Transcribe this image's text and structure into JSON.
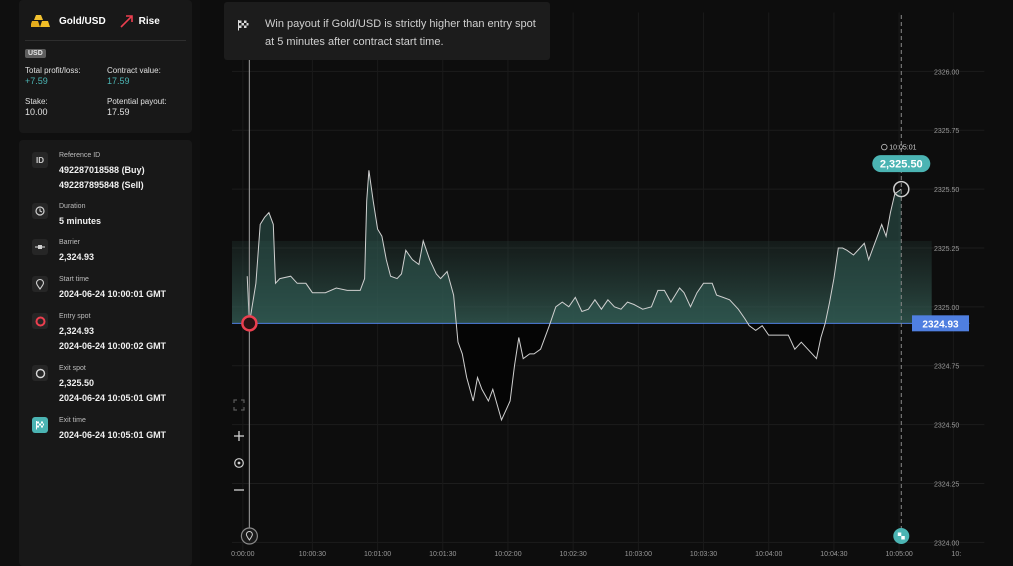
{
  "summary": {
    "asset": "Gold/USD",
    "trade_type": "Rise",
    "currency": "USD",
    "total_pl_label": "Total profit/loss:",
    "total_pl_value": "+7.59",
    "contract_value_label": "Contract value:",
    "contract_value_value": "17.59",
    "stake_label": "Stake:",
    "stake_value": "10.00",
    "potential_payout_label": "Potential payout:",
    "potential_payout_value": "17.59"
  },
  "details": {
    "reference": {
      "icon": "ID",
      "label": "Reference ID",
      "buy": "492287018588 (Buy)",
      "sell": "492287895848 (Sell)"
    },
    "duration": {
      "label": "Duration",
      "value": "5 minutes"
    },
    "barrier": {
      "label": "Barrier",
      "value": "2,324.93"
    },
    "start_time": {
      "label": "Start time",
      "value": "2024-06-24 10:00:01 GMT"
    },
    "entry_spot": {
      "label": "Entry spot",
      "value": "2,324.93",
      "time": "2024-06-24 10:00:02 GMT"
    },
    "exit_spot": {
      "label": "Exit spot",
      "value": "2,325.50",
      "time": "2024-06-24 10:05:01 GMT"
    },
    "exit_time": {
      "label": "Exit time",
      "value": "2024-06-24 10:05:01 GMT"
    }
  },
  "tooltip": {
    "text": "Win payout if Gold/USD is strictly higher than entry spot at 5 minutes after contract start time."
  },
  "colors": {
    "accent_teal": "#4bb4b3",
    "barrier_blue": "#4f7fe0",
    "entry_red": "#ec3f4f",
    "price_line": "#d0d0d0"
  },
  "chart_data": {
    "type": "line",
    "title": "",
    "xlabel": "",
    "ylabel": "",
    "ylim": [
      2323.95,
      2326.08
    ],
    "y_ticks": [
      "2326.00",
      "2325.75",
      "2325.50",
      "2325.25",
      "2325.00",
      "2324.75",
      "2324.50",
      "2324.25",
      "2324.00"
    ],
    "y_tick_values": [
      2326.0,
      2325.75,
      2325.5,
      2325.25,
      2325.0,
      2324.75,
      2324.5,
      2324.25,
      2324.0
    ],
    "x_ticks": [
      "0:00:00",
      "10:00:30",
      "10:01:00",
      "10:01:30",
      "10:02:00",
      "10:02:30",
      "10:03:00",
      "10:03:30",
      "10:04:00",
      "10:04:30",
      "10:05:00",
      "10:"
    ],
    "x_tick_seconds": [
      -2,
      30,
      60,
      90,
      120,
      150,
      180,
      210,
      240,
      270,
      300,
      325
    ],
    "x_range_seconds": [
      -7,
      330
    ],
    "barrier": 2324.93,
    "barrier_label": "2324.93",
    "entry": {
      "t": 1,
      "price": 2324.93
    },
    "exit": {
      "t": 301,
      "price": 2325.5,
      "label": "2,325.50",
      "time_label": "10:05:01"
    },
    "grid": true,
    "series": [
      {
        "values": [
          [
            0,
            2325.13
          ],
          [
            1,
            2324.93
          ],
          [
            4,
            2325.1
          ],
          [
            6,
            2325.35
          ],
          [
            8,
            2325.38
          ],
          [
            10,
            2325.4
          ],
          [
            12,
            2325.35
          ],
          [
            13,
            2325.1
          ],
          [
            15,
            2325.12
          ],
          [
            20,
            2325.13
          ],
          [
            23,
            2325.1
          ],
          [
            27,
            2325.1
          ],
          [
            30,
            2325.06
          ],
          [
            33,
            2325.06
          ],
          [
            36,
            2325.06
          ],
          [
            41,
            2325.08
          ],
          [
            46,
            2325.07
          ],
          [
            52,
            2325.07
          ],
          [
            54,
            2325.12
          ],
          [
            55,
            2325.45
          ],
          [
            56,
            2325.58
          ],
          [
            58,
            2325.45
          ],
          [
            60,
            2325.33
          ],
          [
            62,
            2325.3
          ],
          [
            64,
            2325.2
          ],
          [
            66,
            2325.13
          ],
          [
            69,
            2325.12
          ],
          [
            71,
            2325.14
          ],
          [
            73,
            2325.24
          ],
          [
            76,
            2325.2
          ],
          [
            79,
            2325.18
          ],
          [
            81,
            2325.28
          ],
          [
            84,
            2325.2
          ],
          [
            87,
            2325.14
          ],
          [
            89,
            2325.12
          ],
          [
            92,
            2325.15
          ],
          [
            95,
            2325.05
          ],
          [
            97,
            2324.85
          ],
          [
            99,
            2324.8
          ],
          [
            101,
            2324.7
          ],
          [
            104,
            2324.6
          ],
          [
            106,
            2324.7
          ],
          [
            108,
            2324.65
          ],
          [
            111,
            2324.6
          ],
          [
            113,
            2324.65
          ],
          [
            117,
            2324.52
          ],
          [
            121,
            2324.6
          ],
          [
            123,
            2324.75
          ],
          [
            125,
            2324.87
          ],
          [
            127,
            2324.78
          ],
          [
            130,
            2324.8
          ],
          [
            132,
            2324.8
          ],
          [
            135,
            2324.82
          ],
          [
            139,
            2324.92
          ],
          [
            142,
            2325.0
          ],
          [
            145,
            2325.02
          ],
          [
            148,
            2325.0
          ],
          [
            151,
            2325.04
          ],
          [
            154,
            2324.98
          ],
          [
            157,
            2324.99
          ],
          [
            160,
            2325.03
          ],
          [
            163,
            2324.99
          ],
          [
            166,
            2325.03
          ],
          [
            169,
            2325.0
          ],
          [
            172,
            2324.99
          ],
          [
            175,
            2325.02
          ],
          [
            178,
            2325.01
          ],
          [
            182,
            2324.99
          ],
          [
            186,
            2325.0
          ],
          [
            189,
            2325.07
          ],
          [
            192,
            2325.07
          ],
          [
            195,
            2325.02
          ],
          [
            199,
            2325.08
          ],
          [
            201,
            2325.06
          ],
          [
            204,
            2325.0
          ],
          [
            207,
            2325.06
          ],
          [
            210,
            2325.1
          ],
          [
            214,
            2325.1
          ],
          [
            216,
            2325.05
          ],
          [
            219,
            2325.04
          ],
          [
            222,
            2325.03
          ],
          [
            226,
            2324.99
          ],
          [
            229,
            2324.95
          ],
          [
            231,
            2324.92
          ],
          [
            234,
            2324.9
          ],
          [
            237,
            2324.92
          ],
          [
            240,
            2324.88
          ],
          [
            243,
            2324.88
          ],
          [
            246,
            2324.88
          ],
          [
            249,
            2324.88
          ],
          [
            252,
            2324.82
          ],
          [
            255,
            2324.85
          ],
          [
            258,
            2324.82
          ],
          [
            262,
            2324.78
          ],
          [
            264,
            2324.87
          ],
          [
            266,
            2324.93
          ],
          [
            268,
            2325.02
          ],
          [
            270,
            2325.12
          ],
          [
            272,
            2325.25
          ],
          [
            274,
            2325.25
          ],
          [
            276,
            2325.24
          ],
          [
            279,
            2325.22
          ],
          [
            282,
            2325.25
          ],
          [
            284,
            2325.27
          ],
          [
            286,
            2325.2
          ],
          [
            288,
            2325.25
          ],
          [
            290,
            2325.3
          ],
          [
            292,
            2325.35
          ],
          [
            294,
            2325.3
          ],
          [
            296,
            2325.4
          ],
          [
            298,
            2325.48
          ],
          [
            301,
            2325.5
          ]
        ]
      }
    ]
  }
}
